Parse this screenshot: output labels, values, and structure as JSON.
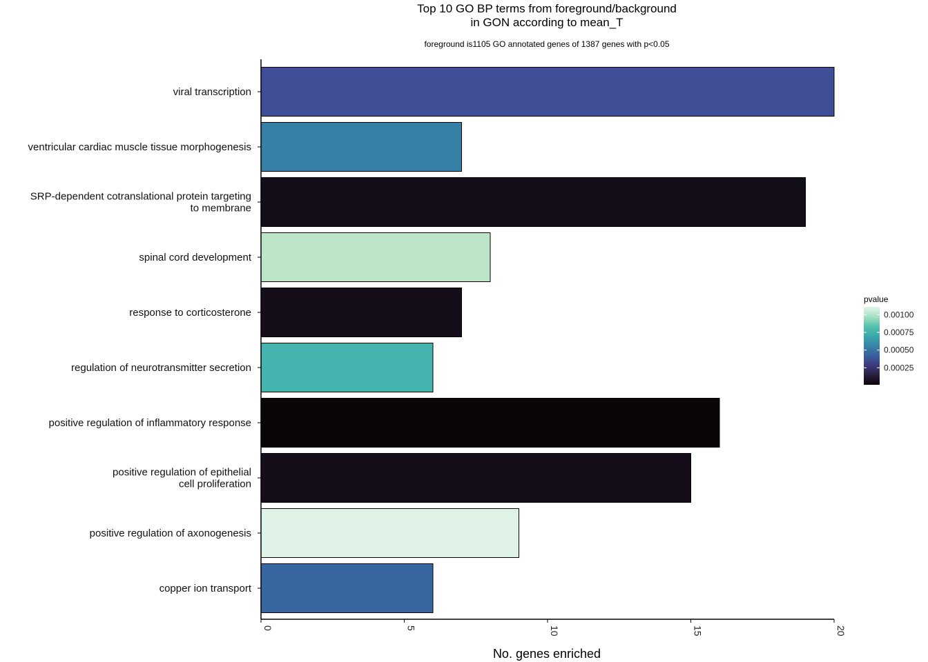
{
  "chart_data": {
    "type": "bar",
    "orientation": "horizontal",
    "title_lines": [
      "Top 10 GO BP terms from foreground/background",
      "in GON according to mean_T"
    ],
    "subtitle": "foreground is1105 GO annotated genes of 1387 genes with p<0.05",
    "xlabel": "No. genes enriched",
    "ylabel": "",
    "xlim": [
      0,
      20
    ],
    "xticks": [
      0,
      5,
      10,
      15,
      20
    ],
    "categories": [
      [
        "viral transcription"
      ],
      [
        "ventricular cardiac muscle tissue morphogenesis"
      ],
      [
        "SRP-dependent cotranslational protein targeting",
        "to membrane"
      ],
      [
        "spinal cord development"
      ],
      [
        "response to corticosterone"
      ],
      [
        "regulation of neurotransmitter secretion"
      ],
      [
        "positive regulation of inflammatory response"
      ],
      [
        "positive regulation of epithelial",
        "cell proliferation"
      ],
      [
        "positive regulation of axonogenesis"
      ],
      [
        "copper ion transport"
      ]
    ],
    "values": [
      20,
      7,
      19,
      8,
      7,
      6,
      16,
      15,
      9,
      6
    ],
    "bar_colors": [
      "#3f4e96",
      "#367fa5",
      "#140e1a",
      "#bde6c8",
      "#150e1a",
      "#43b5ae",
      "#0a0608",
      "#150e1a",
      "#def3e6",
      "#3866a0"
    ],
    "legend": {
      "title": "pvalue",
      "ticks": [
        "0.00100",
        "0.00075",
        "0.00050",
        "0.00025"
      ],
      "tick_values": [
        0.001,
        0.00075,
        0.0005,
        0.00025
      ],
      "range": [
        1e-05,
        0.00111
      ],
      "gradient_colors": [
        "#0b0405",
        "#2a1f3f",
        "#3d3a7e",
        "#3a5fa0",
        "#3784a6",
        "#3aa7ac",
        "#55c3ad",
        "#a6e0c0",
        "#e3f5ea"
      ]
    },
    "grid": false
  }
}
